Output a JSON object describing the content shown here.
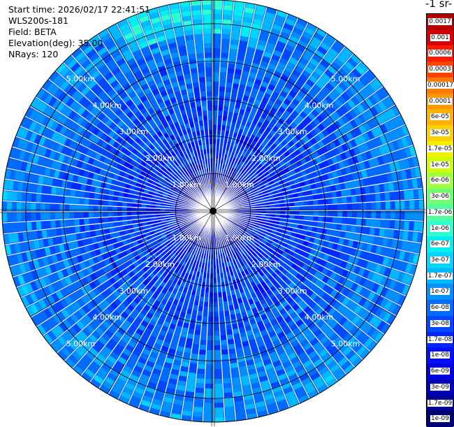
{
  "info": {
    "start_time": "Start time: 2026/02/17 22:41:51",
    "instrument": "WLS200s-181",
    "field": "Field: BETA",
    "elevation": "Elevation(deg): 35.00",
    "nrays": "NRays: 120"
  },
  "units_title": "-1 sr-",
  "chart_data": {
    "type": "heatmap",
    "projection": "polar",
    "n_rays": 120,
    "range_rings_km": [
      1.0,
      2.0,
      3.0,
      4.0,
      5.0
    ],
    "ring_labels": [
      "1.00km",
      "2.00km",
      "3.00km",
      "4.00km",
      "5.00km"
    ],
    "max_range_km": 5.8,
    "colorbar_ticks": [
      "0.0017",
      "0.001",
      "0.0006",
      "0.0003",
      "0.00017",
      "0.0001",
      "6e-05",
      "3e-05",
      "1.7e-05",
      "1e-05",
      "6e-06",
      "3e-06",
      "1.7e-06",
      "1e-06",
      "6e-07",
      "3e-07",
      "1.7e-07",
      "1e-07",
      "6e-08",
      "3e-08",
      "1.7e-08",
      "1e-08",
      "6e-09",
      "3e-09",
      "1.7e-09",
      "1e-09"
    ],
    "colorbar_colors": [
      "#b30000",
      "#d60000",
      "#ff1a00",
      "#ff4400",
      "#ff7a00",
      "#ff9900",
      "#ffb300",
      "#ffd000",
      "#f0f000",
      "#ccff00",
      "#a0ff40",
      "#70ff70",
      "#50ffa0",
      "#30ffd0",
      "#00f0f0",
      "#00d5ff",
      "#00b8ff",
      "#0090ff",
      "#006cff",
      "#0048ff",
      "#0028ff",
      "#0010ff",
      "#0000e0",
      "#0000b8",
      "#000090",
      "#000070"
    ]
  }
}
